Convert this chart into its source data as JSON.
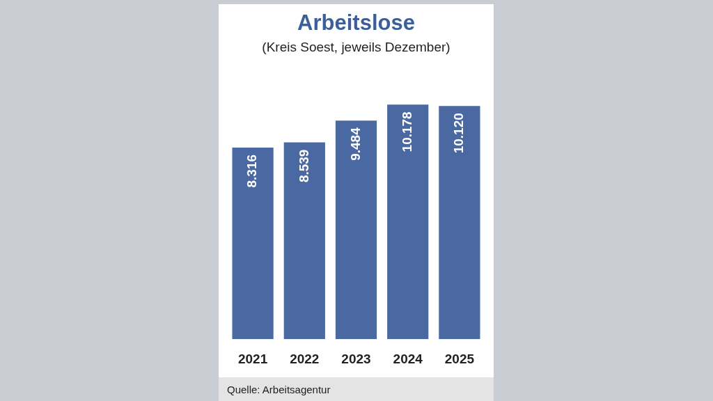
{
  "chart_data": {
    "type": "bar",
    "title": "Arbeitslose",
    "subtitle": "(Kreis Soest, jeweils Dezember)",
    "categories": [
      "2021",
      "2022",
      "2023",
      "2024",
      "2025"
    ],
    "values": [
      8316,
      8539,
      9484,
      10178,
      10120
    ],
    "value_labels": [
      "8.316",
      "8.539",
      "9.484",
      "10.178",
      "10.120"
    ],
    "color": "#4a68a2",
    "grid": false,
    "legend": false,
    "annotations": [
      "Quelle: Arbeitsagentur"
    ]
  }
}
